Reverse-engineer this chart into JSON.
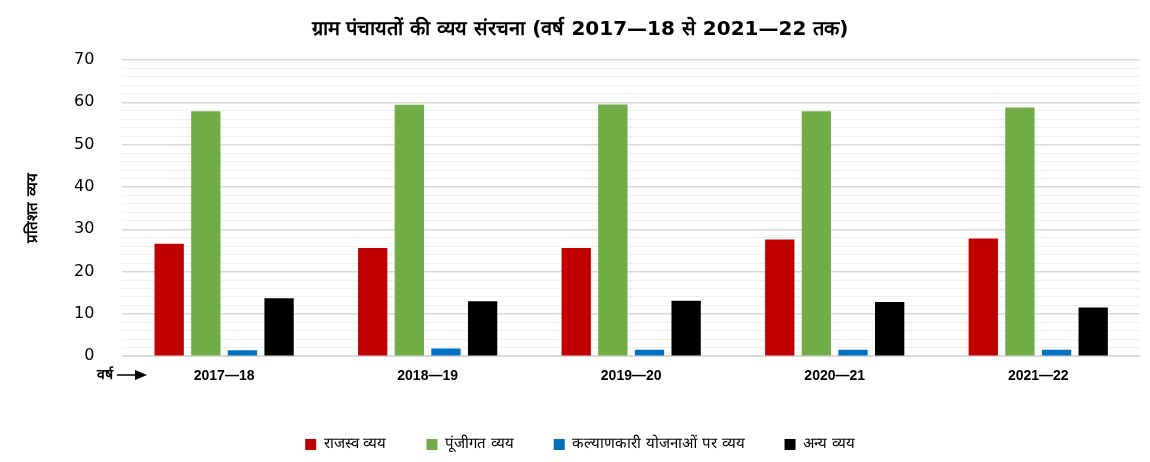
{
  "chart_data": {
    "type": "bar",
    "title": "ग्राम पंचायतों की व्यय संरचना (वर्ष 2017—18 से 2021—22 तक)",
    "ylabel": "प्रतिशत व्यय",
    "annotations": [
      "वर्ष"
    ],
    "categories": [
      "2017—18",
      "2018—19",
      "2019—20",
      "2020—21",
      "2021—22"
    ],
    "series": [
      {
        "name": "राजस्व व्यय",
        "color": "#c00000",
        "values": [
          26.6,
          25.6,
          25.6,
          27.6,
          27.8
        ]
      },
      {
        "name": "पूंजीगत व्यय",
        "color": "#70ad47",
        "values": [
          57.9,
          59.4,
          59.5,
          57.9,
          58.8
        ]
      },
      {
        "name": "कल्याणकारी योजनाओं पर व्यय",
        "color": "#0070c0",
        "values": [
          1.4,
          1.8,
          1.5,
          1.5,
          1.5
        ]
      },
      {
        "name": "अन्य व्यय",
        "color": "#000000",
        "values": [
          13.7,
          13.0,
          13.1,
          12.8,
          11.5
        ]
      }
    ],
    "ylim": [
      0,
      70
    ],
    "yticks": [
      0,
      {
        "value": 2,
        "label": null
      },
      {
        "value": 4,
        "label": null
      },
      {
        "value": 6,
        "label": null
      },
      {
        "value": 8,
        "label": null
      },
      10,
      {
        "value": 12,
        "label": null
      },
      {
        "value": 14,
        "label": null
      },
      {
        "value": 16,
        "label": null
      },
      {
        "value": 18,
        "label": null
      },
      20,
      {
        "value": 22,
        "label": null
      },
      {
        "value": 24,
        "label": null
      },
      {
        "value": 26,
        "label": null
      },
      {
        "value": 28,
        "label": null
      },
      30,
      {
        "value": 32,
        "label": null
      },
      {
        "value": 34,
        "label": null
      },
      {
        "value": 36,
        "label": null
      },
      {
        "value": 38,
        "label": null
      },
      40,
      {
        "value": 42,
        "label": null
      },
      {
        "value": 44,
        "label": null
      },
      {
        "value": 46,
        "label": null
      },
      {
        "value": 48,
        "label": null
      },
      50,
      {
        "value": 52,
        "label": null
      },
      {
        "value": 54,
        "label": null
      },
      {
        "value": 56,
        "label": null
      },
      {
        "value": 58,
        "label": null
      },
      60,
      {
        "value": 62,
        "label": null
      },
      {
        "value": 64,
        "label": null
      },
      {
        "value": 66,
        "label": null
      },
      {
        "value": 68,
        "label": null
      },
      70
    ],
    "grid": "y",
    "legend": "bottom"
  }
}
